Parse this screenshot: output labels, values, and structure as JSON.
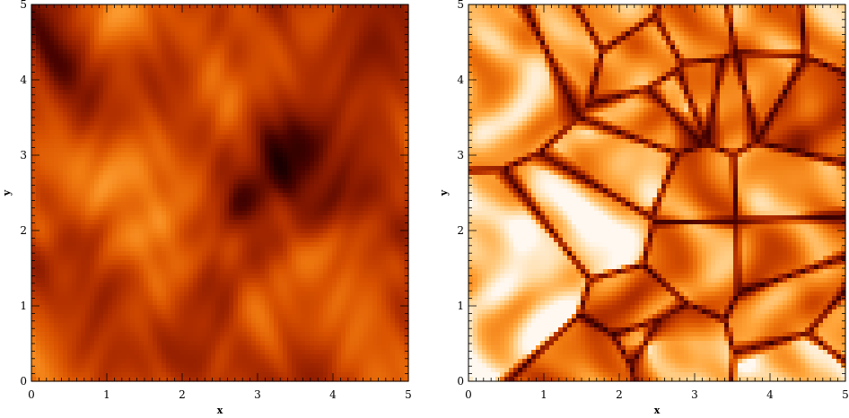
{
  "colors": {
    "colormap": [
      "#1a0000",
      "#4a0300",
      "#8a1a00",
      "#b33000",
      "#d95200",
      "#f07a10",
      "#ffa53a",
      "#ffd594",
      "#fff8f0"
    ],
    "background": "#ffffff",
    "axis": "#000000"
  },
  "chart_data": [
    {
      "type": "heatmap",
      "xlabel": "x",
      "ylabel": "y",
      "xlim": [
        0,
        5
      ],
      "ylim": [
        0,
        5
      ],
      "x_ticks": [
        "0",
        "1",
        "2",
        "3",
        "4",
        "5"
      ],
      "y_ticks": [
        "0",
        "1",
        "2",
        "3",
        "4",
        "5"
      ],
      "description_field": "turbulent",
      "mean_level": 0.38
    },
    {
      "type": "heatmap",
      "xlabel": "x",
      "ylabel": "y",
      "xlim": [
        0,
        5
      ],
      "ylim": [
        0,
        5
      ],
      "x_ticks": [
        "0",
        "1",
        "2",
        "3",
        "4",
        "5"
      ],
      "y_ticks": [
        "0",
        "1",
        "2",
        "3",
        "4",
        "5"
      ],
      "description_field": "cellular",
      "mean_level": 0.62
    }
  ]
}
